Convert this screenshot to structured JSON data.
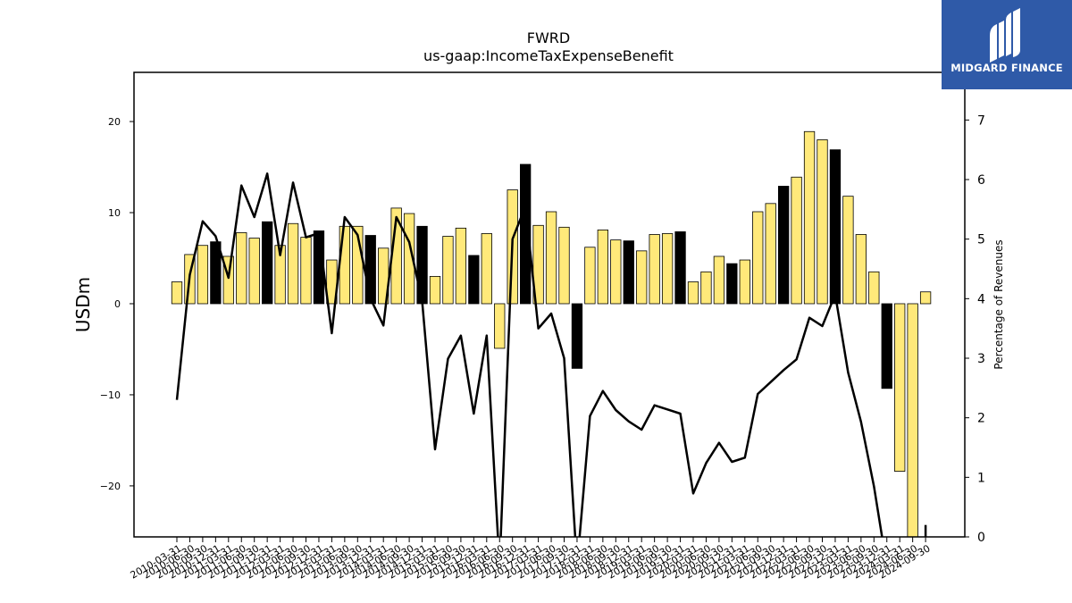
{
  "chart_data": {
    "type": "bar",
    "title": "FWRD",
    "subtitle": "us-gaap:IncomeTaxExpenseBenefit",
    "ylabel": "USDm",
    "y2label": "Percentage of Revenues",
    "ylim": [
      -25.6,
      25.4
    ],
    "y2lim": [
      0,
      7.8
    ],
    "yticks": [
      -20,
      -10,
      0,
      10,
      20
    ],
    "y2ticks": [
      0,
      1,
      2,
      3,
      4,
      5,
      6,
      7
    ],
    "categories": [
      "2010-03-31",
      "2010-06-30",
      "2010-09-30",
      "2010-12-31",
      "2011-03-31",
      "2011-06-30",
      "2011-09-30",
      "2011-12-31",
      "2012-03-31",
      "2012-06-30",
      "2012-09-30",
      "2012-12-31",
      "2013-03-31",
      "2013-06-30",
      "2013-09-30",
      "2013-12-31",
      "2014-03-31",
      "2014-06-30",
      "2014-09-30",
      "2014-12-31",
      "2015-03-31",
      "2015-06-30",
      "2015-09-30",
      "2015-12-31",
      "2016-03-31",
      "2016-06-30",
      "2016-09-30",
      "2016-12-31",
      "2017-03-31",
      "2017-06-30",
      "2017-09-30",
      "2017-12-31",
      "2018-03-31",
      "2018-06-30",
      "2018-09-30",
      "2018-12-31",
      "2019-03-31",
      "2019-06-30",
      "2019-09-30",
      "2019-12-31",
      "2020-03-31",
      "2020-06-30",
      "2020-09-30",
      "2020-12-31",
      "2021-03-31",
      "2021-06-30",
      "2021-09-30",
      "2021-12-31",
      "2022-03-31",
      "2022-06-30",
      "2022-09-30",
      "2022-12-31",
      "2023-03-31",
      "2023-06-30",
      "2023-09-30",
      "2023-12-31",
      "2024-03-31",
      "2024-06-30",
      "2024-09-30"
    ],
    "xtick_labels": [
      "2010-03-31",
      "2010-06-30",
      "2010-09-30",
      "2010-12-31",
      "2011-03-31",
      "2011-06-30",
      "2011-09-30",
      "2011-12-31",
      "2012-03-31",
      "2012-06-30",
      "2012-09-30",
      "2012-12-31",
      "2013-03-31",
      "2013-06-30",
      "2013-09-30",
      "2013-12-31",
      "2014-03-31",
      "2014-06-30",
      "2014-09-30",
      "2014-12-31",
      "2015-03-31",
      "2015-06-30",
      "2015-09-30",
      "2015-12-31",
      "2016-03-31",
      "2016-06-30",
      "2016-09-30",
      "2016-12-31",
      "2017-03-31",
      "2017-06-30",
      "2017-09-30",
      "2017-12-31",
      "2018-03-31",
      "2018-06-30",
      "2018-09-30",
      "2018-12-31",
      "2019-03-31",
      "2019-06-30",
      "2019-09-30",
      "2019-12-31",
      "2020-03-31",
      "2020-06-30",
      "2020-09-30",
      "2020-12-31",
      "2021-03-31",
      "2021-06-30",
      "2021-09-30",
      "2021-12-31",
      "2022-03-31",
      "2022-06-30",
      "2022-09-30",
      "2022-12-31",
      "2023-03-31",
      "2023-06-30",
      "2023-09-30",
      "2023-12-31",
      "2024-03-31",
      "2024-06-30",
      "2024-09-30"
    ],
    "series": [
      {
        "type": "bar",
        "values": [
          2.4,
          5.4,
          6.4,
          6.8,
          5.2,
          7.8,
          7.2,
          9.0,
          6.4,
          8.8,
          7.3,
          8.0,
          4.8,
          8.5,
          8.5,
          7.5,
          6.1,
          10.5,
          9.9,
          8.5,
          3.0,
          7.4,
          8.3,
          5.3,
          7.7,
          -4.9,
          12.5,
          15.3,
          8.6,
          10.1,
          8.4,
          -7.1,
          6.2,
          8.1,
          7.0,
          6.9,
          5.8,
          7.6,
          7.7,
          7.9,
          2.4,
          3.5,
          5.2,
          4.4,
          4.8,
          10.1,
          11.0,
          12.9,
          13.9,
          18.9,
          18.0,
          16.9,
          11.8,
          7.6,
          3.5,
          -9.3,
          -18.4,
          -30.0,
          1.3
        ],
        "highlight": [
          false,
          false,
          false,
          true,
          false,
          false,
          false,
          true,
          false,
          false,
          false,
          true,
          false,
          false,
          false,
          true,
          false,
          false,
          false,
          true,
          false,
          false,
          false,
          true,
          false,
          false,
          false,
          true,
          false,
          false,
          false,
          true,
          false,
          false,
          false,
          true,
          false,
          false,
          false,
          true,
          false,
          false,
          false,
          true,
          false,
          false,
          false,
          true,
          false,
          false,
          false,
          true,
          false,
          false,
          false,
          true,
          false,
          false,
          false
        ]
      },
      {
        "type": "line",
        "axis": "right",
        "values": [
          2.3,
          4.4,
          5.3,
          5.05,
          4.35,
          5.9,
          5.37,
          6.1,
          4.73,
          5.95,
          5.03,
          5.1,
          3.42,
          5.37,
          5.07,
          4.0,
          3.55,
          5.37,
          4.95,
          3.96,
          1.47,
          2.99,
          3.38,
          2.07,
          3.38,
          -0.5,
          5.0,
          5.55,
          3.5,
          3.75,
          3.0,
          -0.5,
          2.03,
          2.45,
          2.13,
          1.94,
          1.8,
          2.21,
          2.14,
          2.07,
          0.73,
          1.24,
          1.58,
          1.26,
          1.33,
          2.4,
          2.6,
          2.8,
          2.98,
          3.68,
          3.54,
          4.07,
          2.76,
          1.93,
          0.85,
          -0.5,
          null,
          null,
          0.2
        ]
      }
    ],
    "colors": {
      "bar": "#ffe97a",
      "bar_highlight": "#000000",
      "line": "#000000",
      "text": "#000000"
    }
  },
  "logo": {
    "text": "MIDGARD FINANCE",
    "bg": "#2f5aa8"
  }
}
